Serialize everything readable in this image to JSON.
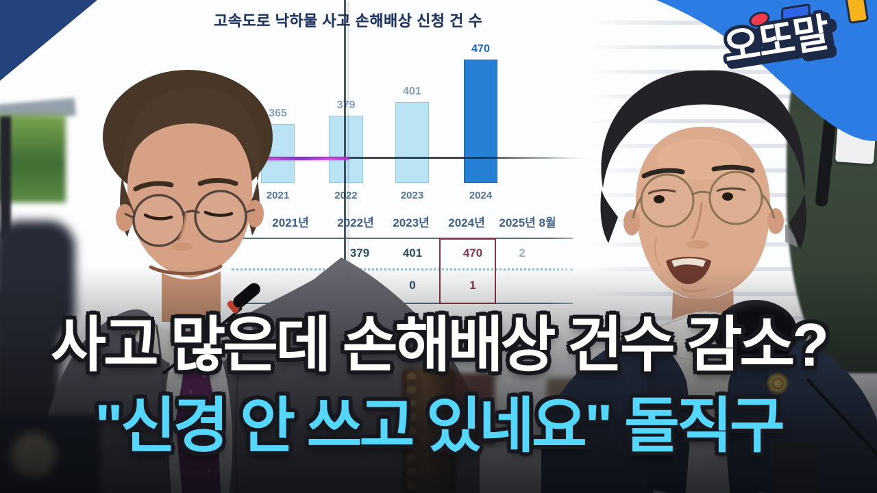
{
  "logo": {
    "text": "오또말",
    "ribbon_color": "#2d7ce3",
    "deco_colors": {
      "red": "#f03a4e",
      "blue": "#2f63e8",
      "yellow": "#f6b31b"
    }
  },
  "chart_data": {
    "type": "bar",
    "title": "고속도로 낙하물 사고 손해배상 신청 건 수",
    "categories": [
      "2021",
      "2022",
      "2023",
      "2024"
    ],
    "values": [
      365,
      379,
      401,
      470
    ],
    "highlight_index": 3,
    "legend": "none",
    "grid": "off",
    "colors": {
      "bar": "#b7e3f3",
      "highlight_bar": "#1b7bd4",
      "label": "#86a0bc",
      "highlight_label": "#1565d2",
      "title": "#1d3360"
    }
  },
  "table": {
    "headers": [
      "2021년",
      "2022년",
      "2023년",
      "2024년",
      "2025년 8월"
    ],
    "rows": [
      [
        "",
        "379",
        "401",
        "470",
        "2"
      ],
      [
        "",
        "",
        "0",
        "1",
        ""
      ]
    ],
    "highlight_column": "2024년",
    "highlight_color": "#8e3246"
  },
  "annotations": {
    "marker_color": "#c13cd1",
    "screen_seam_color": "#162a3a"
  },
  "captions": {
    "line1": "사고 많은데 손해배상 건수 감소?",
    "line2": "\"신경 안 쓰고 있네요\" 돌직구",
    "line1_color": "#ffffff",
    "line2_color": "#55d6fc"
  }
}
